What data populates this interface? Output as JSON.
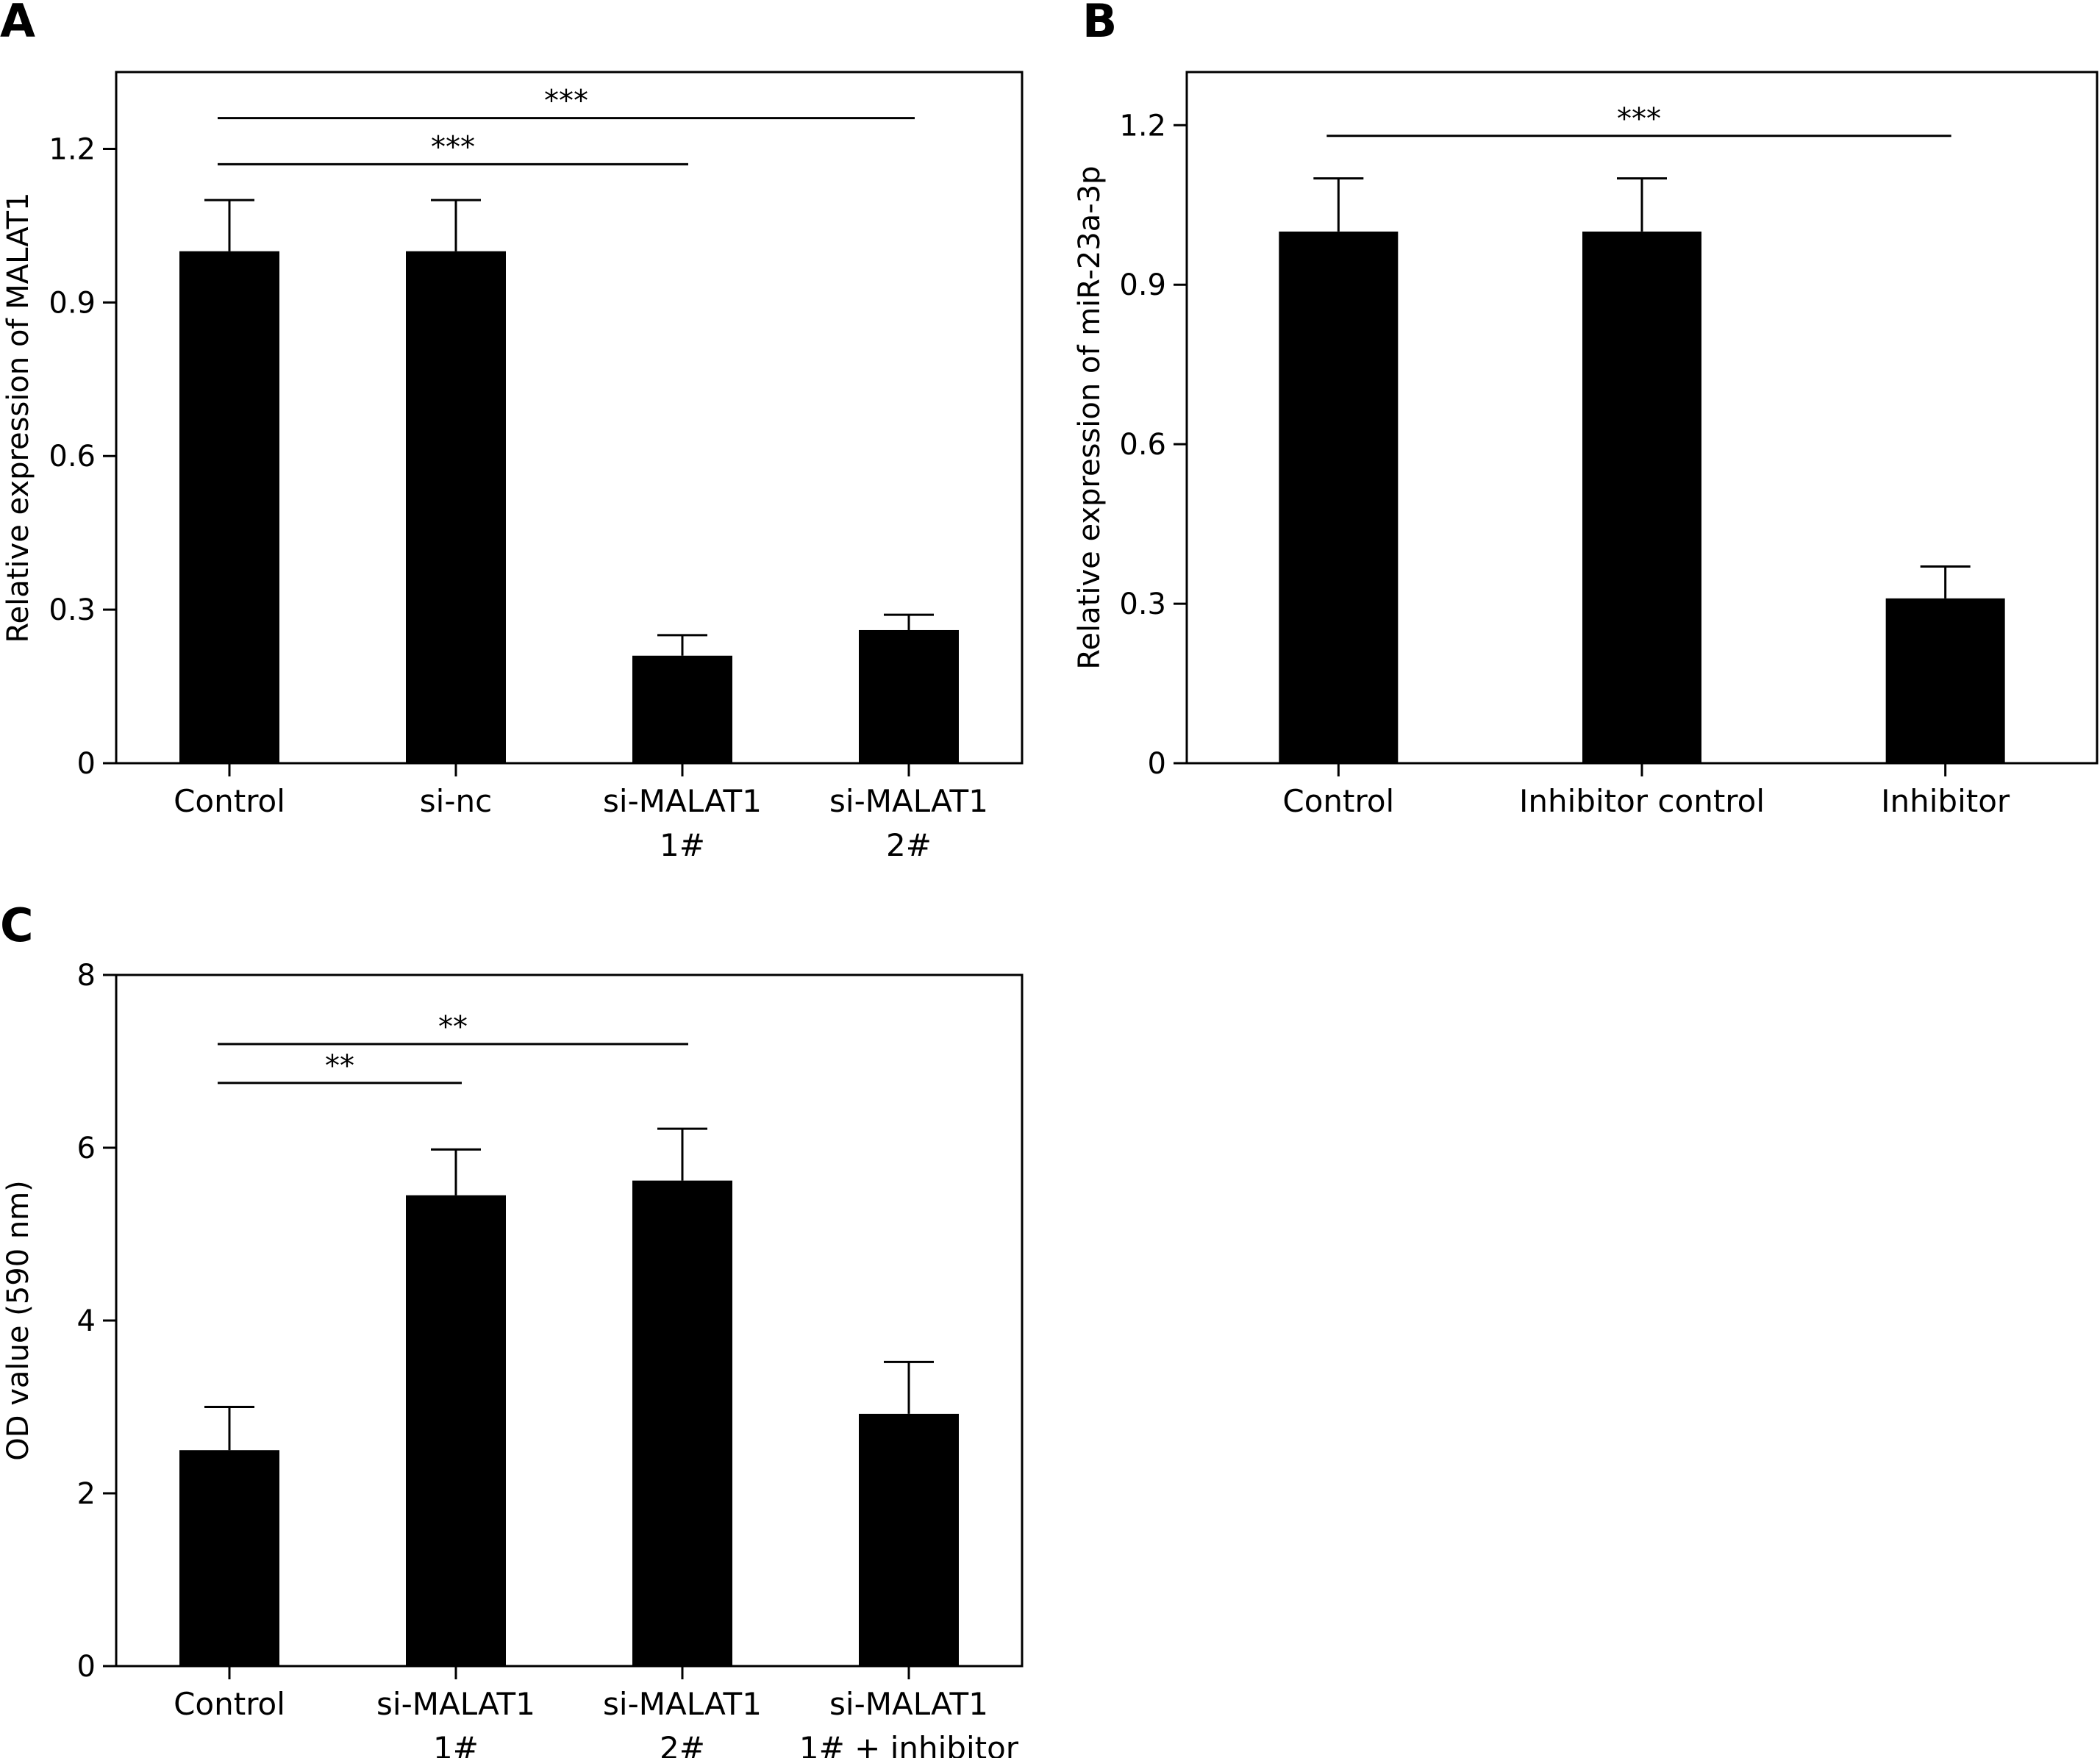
{
  "chart_data": [
    {
      "panel": "A",
      "type": "bar",
      "ylabel": "Relative expression of MALAT1",
      "ylim": [
        0,
        1.35
      ],
      "yticks": [
        0,
        0.3,
        0.6,
        0.9,
        1.2
      ],
      "ytick_labels": [
        "0",
        "0.3",
        "0.6",
        "0.9",
        "1.2"
      ],
      "categories": [
        [
          "Control"
        ],
        [
          "si-nc"
        ],
        [
          "si-MALAT1",
          "1#"
        ],
        [
          "si-MALAT1",
          "2#"
        ]
      ],
      "values": [
        1.0,
        1.0,
        0.21,
        0.26
      ],
      "errors": [
        0.1,
        0.1,
        0.04,
        0.03
      ],
      "significance": [
        {
          "from": 0,
          "to": 3,
          "y": 1.26,
          "label": "***"
        },
        {
          "from": 0,
          "to": 2,
          "y": 1.17,
          "label": "***"
        }
      ],
      "bar_color": "#000000"
    },
    {
      "panel": "B",
      "type": "bar",
      "ylabel": "Relative expression of miR-23a-3p",
      "ylim": [
        0,
        1.3
      ],
      "yticks": [
        0,
        0.3,
        0.6,
        0.9,
        1.2
      ],
      "ytick_labels": [
        "0",
        "0.3",
        "0.6",
        "0.9",
        "1.2"
      ],
      "categories": [
        [
          "Control"
        ],
        [
          "Inhibitor control"
        ],
        [
          "Inhibitor"
        ]
      ],
      "values": [
        1.0,
        1.0,
        0.31
      ],
      "errors": [
        0.1,
        0.1,
        0.06
      ],
      "significance": [
        {
          "from": 0,
          "to": 2,
          "y": 1.18,
          "label": "***"
        }
      ],
      "bar_color": "#000000"
    },
    {
      "panel": "C",
      "type": "bar",
      "ylabel": "OD value (590 nm)",
      "ylim": [
        0,
        8
      ],
      "yticks": [
        0,
        2,
        4,
        6,
        8
      ],
      "ytick_labels": [
        "0",
        "2",
        "4",
        "6",
        "8"
      ],
      "categories": [
        [
          "Control"
        ],
        [
          "si-MALAT1",
          "1#"
        ],
        [
          "si-MALAT1",
          "2#"
        ],
        [
          "si-MALAT1",
          "1# + inhibitor"
        ]
      ],
      "values": [
        2.5,
        5.45,
        5.62,
        2.92
      ],
      "errors": [
        0.5,
        0.53,
        0.6,
        0.6
      ],
      "significance": [
        {
          "from": 0,
          "to": 2,
          "y": 7.2,
          "label": "**"
        },
        {
          "from": 0,
          "to": 1,
          "y": 6.75,
          "label": "**"
        }
      ],
      "bar_color": "#000000"
    }
  ]
}
